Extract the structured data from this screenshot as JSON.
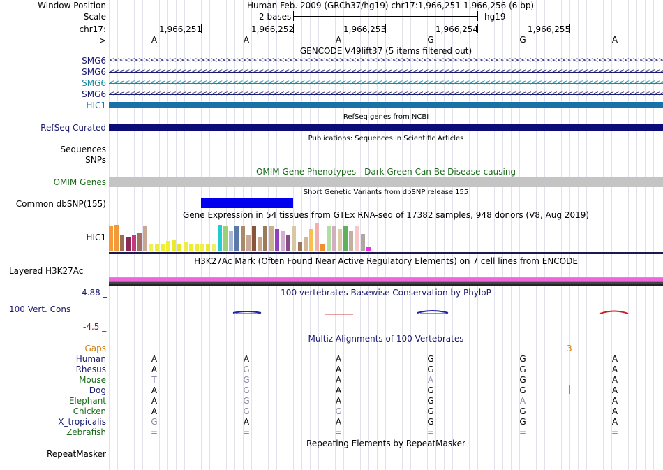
{
  "header": {
    "window_position_label": "Window Position",
    "window_position_value": "Human Feb. 2009 (GRCh37/hg19)   chr17:1,966,251-1,966,256 (6 bp)",
    "scale_label": "Scale",
    "scale_value": "2 bases",
    "assembly": "hg19",
    "chrom_label": "chr17:",
    "arrow_label": "--->",
    "positions": [
      "1,966,251",
      "1,966,252",
      "1,966,253",
      "1,966,254",
      "1,966,255"
    ]
  },
  "sequence": [
    "A",
    "A",
    "A",
    "G",
    "G",
    "A"
  ],
  "gencode": {
    "title": "GENCODE V49lift37 (5 items filtered out)",
    "items": [
      {
        "label": "SMG6",
        "color": "#1a1a6e"
      },
      {
        "label": "SMG6",
        "color": "#1a1a6e"
      },
      {
        "label": "SMG6",
        "color": "#1a8aa0"
      },
      {
        "label": "SMG6",
        "color": "#1a1a6e"
      },
      {
        "label": "HIC1",
        "color": "#1872a8"
      }
    ]
  },
  "refseq": {
    "title": "RefSeq genes from NCBI",
    "label": "RefSeq Curated",
    "color": "#0c0c78"
  },
  "publications": {
    "title": "Publications: Sequences in Scientific Articles",
    "label_sequences": "Sequences",
    "label_snps": "SNPs"
  },
  "omim": {
    "title": "OMIM Gene Phenotypes - Dark Green Can Be Disease-causing",
    "label": "OMIM Genes",
    "color": "#1a6a1a"
  },
  "dbsnp": {
    "title": "Short Genetic Variants from dbSNP release 155",
    "label": "Common dbSNP(155)",
    "color": "#0000ee"
  },
  "gtex": {
    "title": "Gene Expression in 54 tissues from GTEx RNA-seq of 17382 samples, 948 donors (V8, Aug 2019)",
    "label": "HIC1",
    "bars": [
      {
        "v": 0.95,
        "c": "#f79a35"
      },
      {
        "v": 1.0,
        "c": "#f09a3c"
      },
      {
        "v": 0.6,
        "c": "#9b6e54"
      },
      {
        "v": 0.55,
        "c": "#8b2a52"
      },
      {
        "v": 0.6,
        "c": "#c23a7a"
      },
      {
        "v": 0.7,
        "c": "#a07060"
      },
      {
        "v": 0.95,
        "c": "#c8a890"
      },
      {
        "v": 0.25,
        "c": "#f0f050"
      },
      {
        "v": 0.3,
        "c": "#ecec40"
      },
      {
        "v": 0.3,
        "c": "#eeee33"
      },
      {
        "v": 0.4,
        "c": "#f0f030"
      },
      {
        "v": 0.45,
        "c": "#eaea2a"
      },
      {
        "v": 0.3,
        "c": "#e8e820"
      },
      {
        "v": 0.35,
        "c": "#eeee44"
      },
      {
        "v": 0.3,
        "c": "#eeee30"
      },
      {
        "v": 0.25,
        "c": "#ecec38"
      },
      {
        "v": 0.3,
        "c": "#f0f04a"
      },
      {
        "v": 0.3,
        "c": "#e8e83a"
      },
      {
        "v": 0.25,
        "c": "#f0f060"
      },
      {
        "v": 1.0,
        "c": "#22cccc"
      },
      {
        "v": 0.95,
        "c": "#9ad07a"
      },
      {
        "v": 0.75,
        "c": "#aab8d8"
      },
      {
        "v": 0.95,
        "c": "#5a78a8"
      },
      {
        "v": 0.95,
        "c": "#a88a6a"
      },
      {
        "v": 0.6,
        "c": "#c8a898"
      },
      {
        "v": 0.95,
        "c": "#88553a"
      },
      {
        "v": 0.55,
        "c": "#c8a888"
      },
      {
        "v": 0.95,
        "c": "#9a7a5a"
      },
      {
        "v": 0.95,
        "c": "#c8b090"
      },
      {
        "v": 0.85,
        "c": "#9040c0"
      },
      {
        "v": 0.75,
        "c": "#d0b0d0"
      },
      {
        "v": 0.6,
        "c": "#8a4a8a"
      },
      {
        "v": 0.95,
        "c": "#d8c8a8"
      },
      {
        "v": 0.35,
        "c": "#a07858"
      },
      {
        "v": 0.55,
        "c": "#d0b898"
      },
      {
        "v": 0.85,
        "c": "#f8c050"
      },
      {
        "v": 1.05,
        "c": "#f0b0b0"
      },
      {
        "v": 0.25,
        "c": "#f09030"
      },
      {
        "v": 0.95,
        "c": "#b0e0a0"
      },
      {
        "v": 0.95,
        "c": "#d0b0c0"
      },
      {
        "v": 0.85,
        "c": "#e0c8a8"
      },
      {
        "v": 0.95,
        "c": "#60b060"
      },
      {
        "v": 0.75,
        "c": "#c0b0a0"
      },
      {
        "v": 0.95,
        "c": "#f8c8c8"
      },
      {
        "v": 0.65,
        "c": "#b0a8a0"
      },
      {
        "v": 0.15,
        "c": "#e830e8"
      }
    ]
  },
  "h3k27ac": {
    "title": "H3K27Ac Mark (Often Found Near Active Regulatory Elements) on 7 cell lines from ENCODE",
    "label": "Layered H3K27Ac"
  },
  "phylop": {
    "title": "100 vertebrates Basewise Conservation by PhyloP",
    "label": "100 Vert. Cons",
    "max": "4.88 _",
    "min": "-4.5 _"
  },
  "multiz": {
    "title": "Multiz Alignments of 100 Vertebrates",
    "gaps_label": "Gaps",
    "gaps_value": "3",
    "species": [
      {
        "name": "Human",
        "color": "#1a1a6e",
        "bases": [
          "A",
          "A",
          "A",
          "G",
          "G",
          "A"
        ],
        "light": [
          false,
          false,
          false,
          false,
          false,
          false
        ]
      },
      {
        "name": "Rhesus",
        "color": "#1a1a6e",
        "bases": [
          "A",
          "G",
          "A",
          "G",
          "G",
          "A"
        ],
        "light": [
          false,
          true,
          false,
          false,
          false,
          false
        ]
      },
      {
        "name": "Mouse",
        "color": "#1a6a1a",
        "bases": [
          "T",
          "G",
          "A",
          "A",
          "G",
          "A"
        ],
        "light": [
          true,
          true,
          false,
          true,
          false,
          false
        ]
      },
      {
        "name": "Dog",
        "color": "#1a1a6e",
        "bases": [
          "A",
          "G",
          "A",
          "G",
          "G",
          "A"
        ],
        "light": [
          false,
          true,
          false,
          false,
          false,
          false
        ]
      },
      {
        "name": "Elephant",
        "color": "#1a6a1a",
        "bases": [
          "A",
          "G",
          "A",
          "G",
          "A",
          "A"
        ],
        "light": [
          false,
          true,
          false,
          false,
          true,
          false
        ]
      },
      {
        "name": "Chicken",
        "color": "#1a6a1a",
        "bases": [
          "A",
          "G",
          "G",
          "G",
          "G",
          "A"
        ],
        "light": [
          false,
          true,
          true,
          false,
          false,
          false
        ]
      },
      {
        "name": "X_tropicalis",
        "color": "#1a1a6e",
        "bases": [
          "G",
          "A",
          "A",
          "G",
          "G",
          "A"
        ],
        "light": [
          true,
          false,
          false,
          false,
          false,
          false
        ]
      },
      {
        "name": "Zebrafish",
        "color": "#1a6a1a",
        "bases": [
          "=",
          "=",
          "=",
          "=",
          "=",
          "="
        ],
        "light": [
          true,
          true,
          true,
          true,
          true,
          true
        ]
      }
    ]
  },
  "repeatmasker": {
    "title": "Repeating Elements by RepeatMasker",
    "label": "RepeatMasker"
  }
}
